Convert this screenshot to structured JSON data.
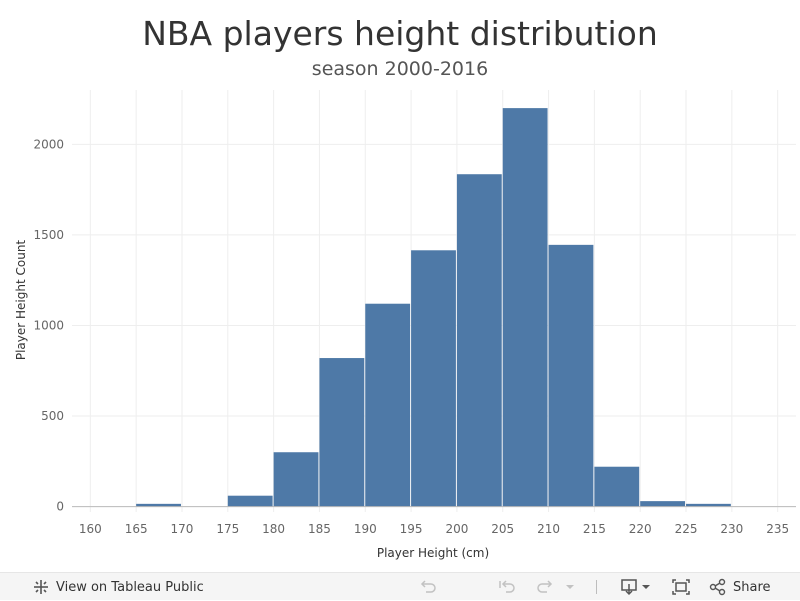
{
  "title": "NBA players height distribution",
  "subtitle": "season 2000-2016",
  "chart_data": {
    "type": "bar",
    "subtype": "histogram",
    "bin_width": 5,
    "bins": [
      {
        "start": 160,
        "end": 165,
        "value": 0
      },
      {
        "start": 165,
        "end": 170,
        "value": 15
      },
      {
        "start": 170,
        "end": 175,
        "value": 0
      },
      {
        "start": 175,
        "end": 180,
        "value": 60
      },
      {
        "start": 180,
        "end": 185,
        "value": 300
      },
      {
        "start": 185,
        "end": 190,
        "value": 820
      },
      {
        "start": 190,
        "end": 195,
        "value": 1120
      },
      {
        "start": 195,
        "end": 200,
        "value": 1415
      },
      {
        "start": 200,
        "end": 205,
        "value": 1835
      },
      {
        "start": 205,
        "end": 210,
        "value": 2200
      },
      {
        "start": 210,
        "end": 215,
        "value": 1445
      },
      {
        "start": 215,
        "end": 220,
        "value": 220
      },
      {
        "start": 220,
        "end": 225,
        "value": 30
      },
      {
        "start": 225,
        "end": 230,
        "value": 15
      },
      {
        "start": 230,
        "end": 235,
        "value": 0
      }
    ],
    "x_ticks": [
      "160",
      "165",
      "170",
      "175",
      "180",
      "185",
      "190",
      "195",
      "200",
      "205",
      "210",
      "215",
      "220",
      "225",
      "230",
      "235"
    ],
    "y_ticks": [
      "0",
      "500",
      "1000",
      "1500",
      "2000"
    ],
    "xlabel": "Player Height (cm)",
    "ylabel": "Player Height Count",
    "xlim": [
      158,
      237
    ],
    "ylim": [
      -30,
      2300
    ],
    "grid": true,
    "bar_color": "#4e79a7"
  },
  "toolbar": {
    "view_label": "View on Tableau Public",
    "share_label": "Share",
    "icons": [
      "tableau-logo-icon",
      "undo-icon",
      "revert-icon",
      "redo-icon",
      "download-icon",
      "fullscreen-icon",
      "share-icon"
    ]
  }
}
